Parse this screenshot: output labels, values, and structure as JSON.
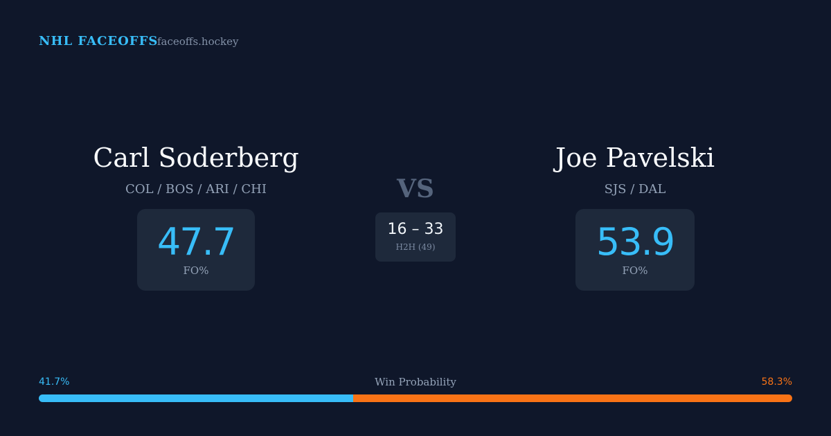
{
  "header": {
    "brand": "NHL FACEOFFS",
    "site": "faceoffs.hockey"
  },
  "players": [
    {
      "name": "Carl Soderberg",
      "teams": "COL / BOS / ARI / CHI",
      "fo_value": 47.7,
      "fo_label": "FO%"
    },
    {
      "name": "Joe Pavelski",
      "teams": "SJS / DAL",
      "fo_value": 53.9,
      "fo_label": "FO%"
    }
  ],
  "versus": {
    "label": "VS",
    "score": "16 – 33",
    "detail": "H2H (49)"
  },
  "win_probability": {
    "label": "Win Probability",
    "values": [
      41.7,
      58.3
    ],
    "value_labels": [
      "41.7%",
      "58.3%"
    ],
    "colors": [
      "#38bdf8",
      "#f97316"
    ]
  }
}
